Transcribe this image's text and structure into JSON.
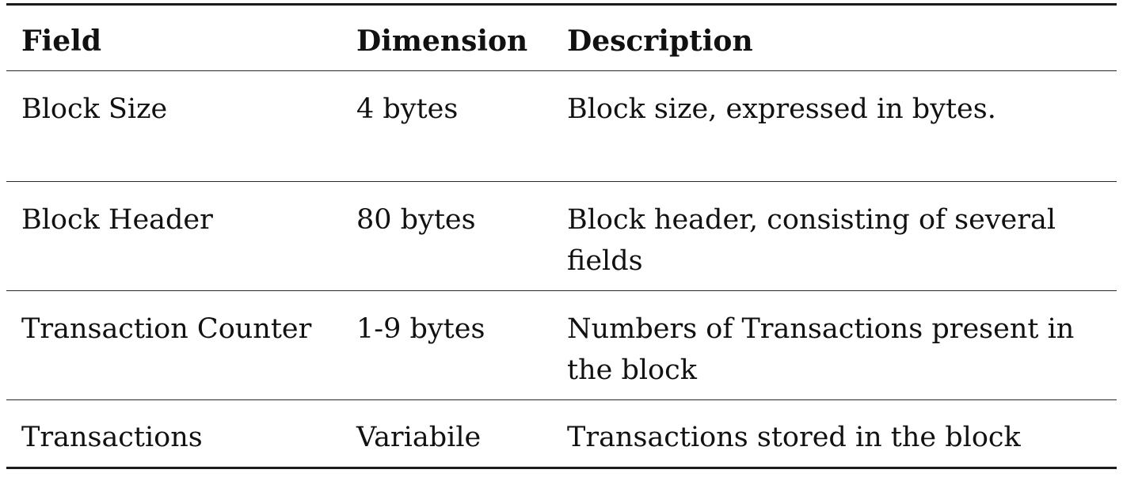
{
  "table": {
    "columns": [
      "Field",
      "Dimension",
      "Description"
    ],
    "rows": [
      {
        "field": "Block Size",
        "dimension": "4 bytes",
        "description": "Block size, expressed in bytes."
      },
      {
        "field": "Block Header",
        "dimension": "80 bytes",
        "description": "Block header, consisting of several fields"
      },
      {
        "field": "Transaction Counter",
        "dimension": "1-9 bytes",
        "description": "Numbers of Transactions present in the block"
      },
      {
        "field": "Transactions",
        "dimension": "Variabile",
        "description": "Transactions stored in the block"
      }
    ]
  }
}
